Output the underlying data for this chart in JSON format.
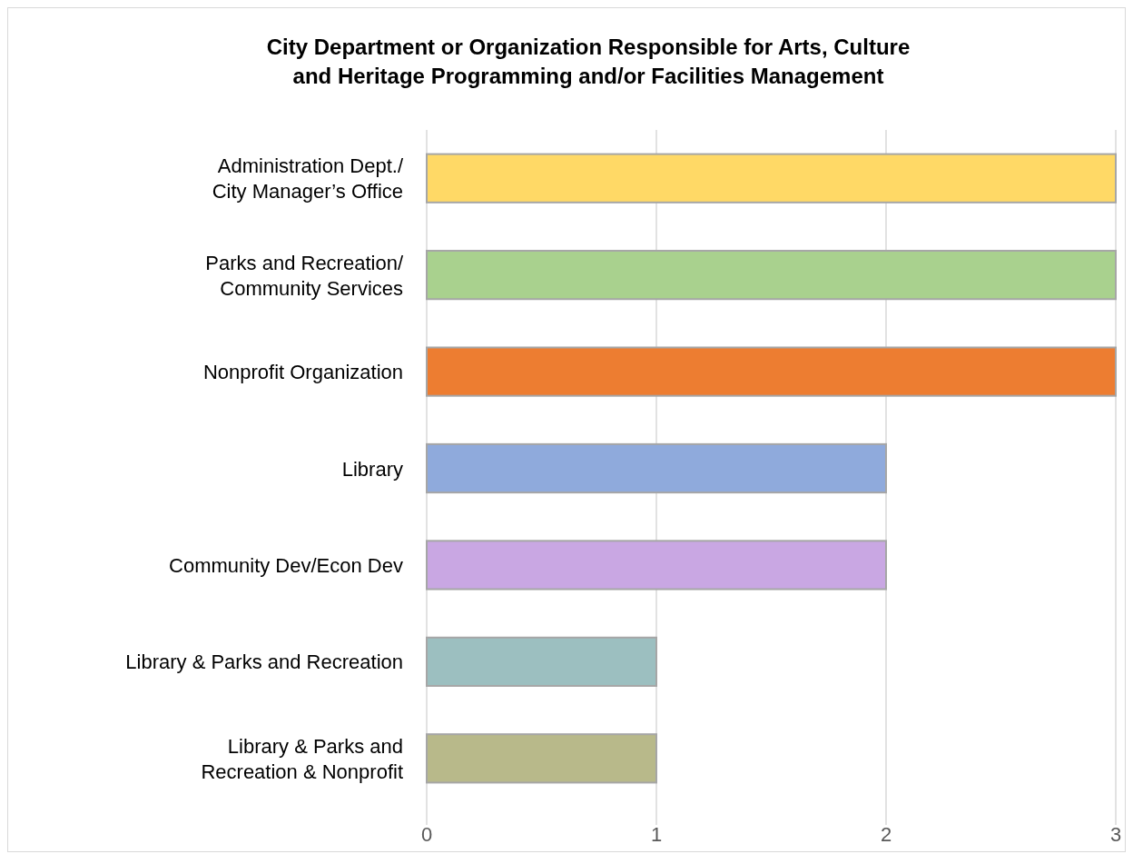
{
  "chart_data": {
    "type": "bar",
    "orientation": "horizontal",
    "title": "City Department or Organization Responsible for Arts, Culture\nand Heritage Programming and/or Facilities Management",
    "categories": [
      "Administration Dept./\nCity Manager’s Office",
      "Parks and Recreation/\nCommunity Services",
      "Nonprofit Organization",
      "Library",
      "Community Dev/Econ Dev",
      "Library & Parks and Recreation",
      "Library & Parks and\nRecreation & Nonprofit"
    ],
    "values": [
      3,
      3,
      3,
      2,
      2,
      1,
      1
    ],
    "colors": [
      "#ffd966",
      "#a9d18e",
      "#ed7d31",
      "#8faadc",
      "#c9a7e3",
      "#9cbfc0",
      "#b8b98a"
    ],
    "xlim": [
      0,
      3
    ],
    "xticks": [
      0,
      1,
      2,
      3
    ],
    "grid": "x"
  }
}
